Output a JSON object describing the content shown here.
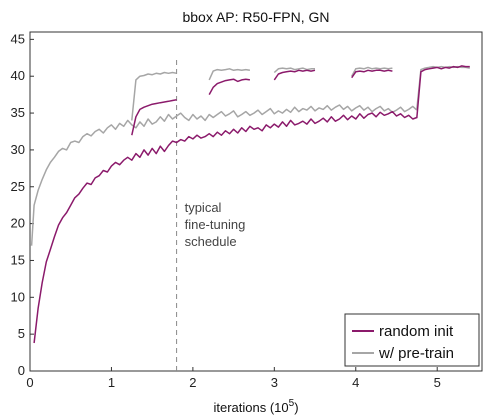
{
  "chart_data": {
    "type": "line",
    "title": "bbox AP: R50-FPN, GN",
    "xlabel": "iterations (10",
    "xlabel_sup": "5",
    "xlabel_close": ")",
    "ylabel": "",
    "xlim": [
      0,
      5.55
    ],
    "ylim": [
      0,
      46
    ],
    "xticks": [
      0,
      1,
      2,
      3,
      4,
      5
    ],
    "yticks": [
      0,
      5,
      10,
      15,
      20,
      25,
      30,
      35,
      40,
      45
    ],
    "grid": false,
    "legend_position": "bottom-right",
    "colors": {
      "random_init": "#8b1a6b",
      "pretrain": "#a6a6a6",
      "annotation_line": "#888888"
    },
    "annotation": {
      "x": 1.8,
      "lines": [
        "typical",
        "fine-tuning",
        "schedule"
      ]
    },
    "series": [
      {
        "name": "random init",
        "key": "random_init",
        "segments": [
          {
            "x": [
              0.05,
              0.1,
              0.15,
              0.2,
              0.25,
              0.3,
              0.35,
              0.4,
              0.45,
              0.5,
              0.55,
              0.6,
              0.65,
              0.7,
              0.75,
              0.8,
              0.85,
              0.9,
              0.95,
              1.0,
              1.05,
              1.1,
              1.15,
              1.2,
              1.25,
              1.3,
              1.35,
              1.4,
              1.45,
              1.5,
              1.55,
              1.6,
              1.65,
              1.7,
              1.75,
              1.8,
              1.85,
              1.9,
              1.95,
              2.0,
              2.05,
              2.1,
              2.15,
              2.2,
              2.25,
              2.3,
              2.35,
              2.4,
              2.45,
              2.5,
              2.55,
              2.6,
              2.65,
              2.7,
              2.75,
              2.8,
              2.85,
              2.9,
              2.95,
              3.0,
              3.05,
              3.1,
              3.15,
              3.2,
              3.25,
              3.3,
              3.35,
              3.4,
              3.45,
              3.5,
              3.55,
              3.6,
              3.65,
              3.7,
              3.75,
              3.8,
              3.85,
              3.9,
              3.95,
              4.0,
              4.05,
              4.1,
              4.15,
              4.2,
              4.25,
              4.3,
              4.35,
              4.4,
              4.45,
              4.5,
              4.55,
              4.6,
              4.65,
              4.7,
              4.75
            ],
            "y": [
              3.8,
              8.5,
              12.0,
              14.8,
              16.5,
              18.2,
              19.8,
              20.8,
              21.5,
              22.5,
              23.5,
              24.0,
              24.8,
              25.5,
              25.3,
              26.2,
              26.5,
              27.2,
              27.0,
              27.8,
              28.3,
              28.0,
              28.6,
              29.0,
              28.6,
              29.5,
              29.0,
              30.0,
              29.3,
              30.2,
              29.5,
              30.5,
              29.8,
              30.6,
              31.2,
              31.0,
              31.4,
              31.2,
              31.8,
              31.5,
              32.0,
              31.6,
              31.8,
              32.2,
              31.8,
              32.4,
              32.0,
              32.6,
              32.2,
              32.8,
              32.3,
              33.0,
              32.5,
              33.2,
              32.8,
              33.0,
              32.6,
              33.4,
              33.0,
              33.5,
              33.1,
              33.8,
              33.2,
              34.0,
              33.4,
              33.6,
              33.9,
              33.5,
              34.2,
              33.6,
              33.9,
              34.3,
              33.8,
              34.5,
              33.9,
              34.2,
              34.7,
              34.1,
              34.6,
              34.2,
              34.9,
              34.3,
              34.8,
              35.0,
              34.5,
              35.1,
              34.7,
              34.9,
              35.2,
              34.6,
              34.9,
              34.4,
              34.7,
              34.2,
              34.4
            ]
          },
          {
            "x": [
              1.25,
              1.3,
              1.35,
              1.4,
              1.45,
              1.5,
              1.55,
              1.6,
              1.65,
              1.7,
              1.75,
              1.8
            ],
            "y": [
              32.0,
              34.5,
              35.5,
              35.8,
              36.0,
              36.2,
              36.3,
              36.4,
              36.5,
              36.6,
              36.7,
              36.8
            ]
          },
          {
            "x": [
              2.2,
              2.25,
              2.3,
              2.35,
              2.4,
              2.45,
              2.5,
              2.55,
              2.6,
              2.65,
              2.7
            ],
            "y": [
              37.5,
              38.5,
              39.0,
              39.2,
              39.4,
              39.5,
              39.6,
              39.3,
              39.5,
              39.6,
              39.5
            ]
          },
          {
            "x": [
              3.0,
              3.05,
              3.1,
              3.15,
              3.2,
              3.25,
              3.3,
              3.35,
              3.4,
              3.45,
              3.5
            ],
            "y": [
              39.5,
              40.3,
              40.5,
              40.6,
              40.7,
              40.6,
              40.8,
              40.7,
              40.8,
              40.7,
              40.8
            ]
          },
          {
            "x": [
              3.95,
              4.0,
              4.05,
              4.1,
              4.15,
              4.2,
              4.25,
              4.3,
              4.35,
              4.4,
              4.45
            ],
            "y": [
              39.8,
              40.6,
              40.7,
              40.6,
              40.8,
              40.7,
              40.8,
              40.8,
              40.7,
              40.8,
              40.7
            ]
          },
          {
            "x": [
              4.75,
              4.8,
              4.85,
              4.9,
              4.95,
              5.0,
              5.05,
              5.1,
              5.15,
              5.2,
              5.25,
              5.3,
              5.35,
              5.4
            ],
            "y": [
              34.3,
              40.6,
              40.9,
              41.0,
              41.1,
              41.2,
              41.0,
              41.2,
              41.1,
              41.3,
              41.2,
              41.4,
              41.3,
              41.3
            ]
          }
        ]
      },
      {
        "name": "w/ pre-train",
        "key": "pretrain",
        "segments": [
          {
            "x": [
              0.02,
              0.05,
              0.1,
              0.15,
              0.2,
              0.25,
              0.3,
              0.35,
              0.4,
              0.45,
              0.5,
              0.55,
              0.6,
              0.65,
              0.7,
              0.75,
              0.8,
              0.85,
              0.9,
              0.95,
              1.0,
              1.05,
              1.1,
              1.15,
              1.2,
              1.25,
              1.3,
              1.35,
              1.4,
              1.45,
              1.5,
              1.55,
              1.6,
              1.65,
              1.7,
              1.75,
              1.8,
              1.85,
              1.9,
              1.95,
              2.0,
              2.05,
              2.1,
              2.15,
              2.2,
              2.25,
              2.3,
              2.35,
              2.4,
              2.45,
              2.5,
              2.55,
              2.6,
              2.65,
              2.7,
              2.75,
              2.8,
              2.85,
              2.9,
              2.95,
              3.0,
              3.05,
              3.1,
              3.15,
              3.2,
              3.25,
              3.3,
              3.35,
              3.4,
              3.45,
              3.5,
              3.55,
              3.6,
              3.65,
              3.7,
              3.75,
              3.8,
              3.85,
              3.9,
              3.95,
              4.0,
              4.05,
              4.1,
              4.15,
              4.2,
              4.25,
              4.3,
              4.35,
              4.4,
              4.45,
              4.5,
              4.55,
              4.6,
              4.65,
              4.7,
              4.75
            ],
            "y": [
              17.0,
              22.5,
              24.5,
              26.0,
              27.3,
              28.3,
              29.0,
              29.8,
              30.2,
              30.0,
              31.0,
              31.2,
              31.0,
              31.8,
              32.2,
              31.9,
              32.5,
              32.8,
              32.3,
              33.0,
              33.4,
              32.8,
              33.6,
              33.2,
              34.0,
              33.4,
              33.0,
              33.8,
              33.2,
              34.2,
              33.5,
              33.8,
              34.5,
              33.9,
              34.8,
              34.2,
              34.6,
              35.0,
              34.4,
              34.0,
              34.8,
              34.2,
              34.6,
              34.0,
              34.8,
              34.4,
              34.8,
              35.2,
              34.6,
              34.9,
              35.3,
              34.5,
              34.8,
              35.2,
              34.7,
              35.0,
              35.4,
              34.8,
              35.2,
              35.6,
              34.9,
              35.3,
              35.0,
              35.5,
              35.1,
              35.8,
              35.2,
              35.6,
              35.4,
              35.9,
              35.3,
              35.7,
              35.5,
              36.0,
              35.4,
              35.8,
              36.1,
              35.5,
              35.9,
              35.3,
              35.7,
              36.0,
              35.4,
              35.8,
              35.2,
              35.6,
              35.9,
              35.3,
              35.6,
              35.1,
              35.4,
              35.8,
              35.2,
              35.5,
              35.9,
              35.4
            ]
          },
          {
            "x": [
              1.25,
              1.3,
              1.35,
              1.4,
              1.45,
              1.5,
              1.55,
              1.6,
              1.65,
              1.7,
              1.75,
              1.8
            ],
            "y": [
              34.0,
              39.5,
              40.0,
              40.1,
              40.3,
              40.2,
              40.4,
              40.3,
              40.5,
              40.4,
              40.5,
              40.4
            ]
          },
          {
            "x": [
              2.2,
              2.25,
              2.3,
              2.35,
              2.4,
              2.45,
              2.5,
              2.55,
              2.6,
              2.65,
              2.7
            ],
            "y": [
              39.5,
              40.7,
              40.9,
              40.8,
              40.9,
              41.0,
              40.8,
              40.9,
              40.8,
              40.9,
              40.8
            ]
          },
          {
            "x": [
              3.0,
              3.05,
              3.1,
              3.15,
              3.2,
              3.25,
              3.3,
              3.35,
              3.4,
              3.45,
              3.5
            ],
            "y": [
              40.5,
              41.0,
              41.1,
              41.0,
              41.1,
              40.9,
              41.0,
              41.1,
              40.9,
              41.0,
              41.0
            ]
          },
          {
            "x": [
              3.95,
              4.0,
              4.05,
              4.1,
              4.15,
              4.2,
              4.25,
              4.3,
              4.35,
              4.4,
              4.45
            ],
            "y": [
              40.0,
              41.0,
              41.1,
              41.0,
              41.2,
              41.0,
              41.1,
              41.0,
              41.1,
              41.0,
              41.1
            ]
          },
          {
            "x": [
              4.75,
              4.8,
              4.85,
              4.9,
              4.95,
              5.0,
              5.05,
              5.1,
              5.15,
              5.2,
              5.25,
              5.3,
              5.35,
              5.4
            ],
            "y": [
              35.5,
              40.9,
              41.1,
              41.2,
              41.3,
              41.2,
              41.3,
              41.2,
              41.3,
              41.2,
              41.3,
              41.2,
              41.2,
              41.1
            ]
          }
        ]
      }
    ]
  }
}
